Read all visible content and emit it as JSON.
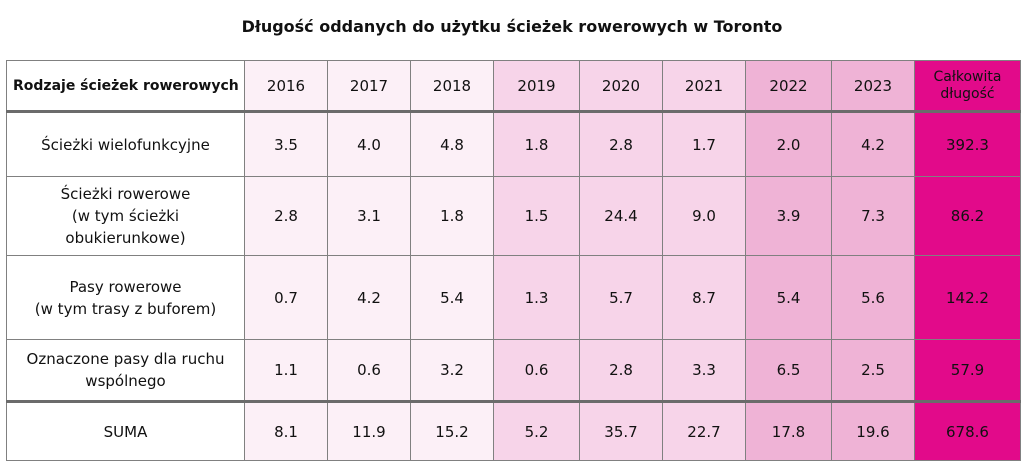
{
  "chart_data": {
    "type": "table",
    "title": "Długość oddanych do użytku ścieżek rowerowych w Toronto",
    "header": {
      "label": "Rodzaje ścieżek rowerowych",
      "years": [
        "2016",
        "2017",
        "2018",
        "2019",
        "2020",
        "2021",
        "2022",
        "2023"
      ],
      "total_line1": "Całkowita",
      "total_line2": "długość"
    },
    "rows": [
      {
        "label_line1": "Ścieżki wielofunkcyjne",
        "label_line2": "",
        "values": [
          "3.5",
          "4.0",
          "4.8",
          "1.8",
          "2.8",
          "1.7",
          "2.0",
          "4.2"
        ],
        "total": "392.3"
      },
      {
        "label_line1": "Ścieżki rowerowe",
        "label_line2": "(w tym ścieżki obukierunkowe)",
        "values": [
          "2.8",
          "3.1",
          "1.8",
          "1.5",
          "24.4",
          "9.0",
          "3.9",
          "7.3"
        ],
        "total": "86.2"
      },
      {
        "label_line1": "Pasy rowerowe",
        "label_line2": "(w tym trasy z buforem)",
        "values": [
          "0.7",
          "4.2",
          "5.4",
          "1.3",
          "5.7",
          "8.7",
          "5.4",
          "5.6"
        ],
        "total": "142.2"
      },
      {
        "label_line1": "Oznaczone pasy dla ruchu",
        "label_line2": "wspólnego",
        "values": [
          "1.1",
          "0.6",
          "3.2",
          "0.6",
          "2.8",
          "3.3",
          "6.5",
          "2.5"
        ],
        "total": "57.9"
      }
    ],
    "sum_row": {
      "label": "SUMA",
      "values": [
        "8.1",
        "11.9",
        "15.2",
        "5.2",
        "35.7",
        "22.7",
        "17.8",
        "19.6"
      ],
      "total": "678.6"
    },
    "column_colors": {
      "label": "#ffffff",
      "2016-2018": "#fcf0f7",
      "2019-2021": "#f7d4e9",
      "2022-2023": "#efb3d6",
      "total": "#e20a8a"
    }
  }
}
